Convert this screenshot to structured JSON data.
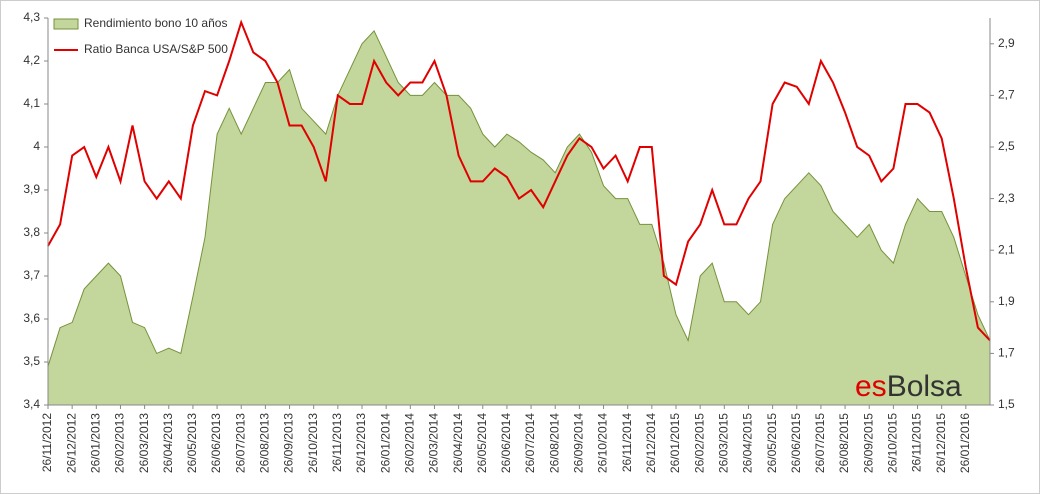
{
  "chart_data": {
    "type": "line",
    "categories": [
      "26/11/2012",
      null,
      "26/12/2012",
      null,
      "26/01/2013",
      null,
      "26/02/2013",
      null,
      "26/03/2013",
      null,
      "26/04/2013",
      null,
      "26/05/2013",
      null,
      "26/06/2013",
      null,
      "26/07/2013",
      null,
      "26/08/2013",
      null,
      "26/09/2013",
      null,
      "26/10/2013",
      null,
      "26/11/2013",
      null,
      "26/12/2013",
      null,
      "26/01/2014",
      null,
      "26/02/2014",
      null,
      "26/03/2014",
      null,
      "26/04/2014",
      null,
      "26/05/2014",
      null,
      "26/06/2014",
      null,
      "26/07/2014",
      null,
      "26/08/2014",
      null,
      "26/09/2014",
      null,
      "26/10/2014",
      null,
      "26/11/2014",
      null,
      "26/12/2014",
      null,
      "26/01/2015",
      null,
      "26/02/2015",
      null,
      "26/03/2015",
      null,
      "26/04/2015",
      null,
      "26/05/2015",
      null,
      "26/06/2015",
      null,
      "26/07/2015",
      null,
      "26/08/2015",
      null,
      "26/09/2015",
      null,
      "26/10/2015",
      null,
      "26/11/2015",
      null,
      "26/12/2015",
      null,
      "26/01/2016",
      null,
      null
    ],
    "series": [
      {
        "name": "Rendimiento bono 10 años",
        "color": "#c3d69b",
        "stroke": "#76923c",
        "axis": "y2",
        "kind": "area",
        "values": [
          1.65,
          1.8,
          1.82,
          1.95,
          2.0,
          2.05,
          2.0,
          1.82,
          1.8,
          1.7,
          1.72,
          1.7,
          1.92,
          2.15,
          2.55,
          2.65,
          2.55,
          2.65,
          2.75,
          2.75,
          2.8,
          2.65,
          2.6,
          2.55,
          2.7,
          2.8,
          2.9,
          2.95,
          2.85,
          2.75,
          2.7,
          2.7,
          2.75,
          2.7,
          2.7,
          2.65,
          2.55,
          2.5,
          2.55,
          2.52,
          2.48,
          2.45,
          2.4,
          2.5,
          2.55,
          2.48,
          2.35,
          2.3,
          2.3,
          2.2,
          2.2,
          2.05,
          1.85,
          1.75,
          2.0,
          2.05,
          1.9,
          1.9,
          1.85,
          1.9,
          2.2,
          2.3,
          2.35,
          2.4,
          2.35,
          2.25,
          2.2,
          2.15,
          2.2,
          2.1,
          2.05,
          2.2,
          2.3,
          2.25,
          2.25,
          2.15,
          2.0,
          1.85,
          1.75
        ]
      },
      {
        "name": "Ratio Banca USA/S&P 500",
        "color": "#e00000",
        "kind": "line",
        "values": [
          3.77,
          3.82,
          3.98,
          4.0,
          3.93,
          4.0,
          3.92,
          4.05,
          3.92,
          3.88,
          3.92,
          3.88,
          4.05,
          4.13,
          4.12,
          4.2,
          4.29,
          4.22,
          4.2,
          4.15,
          4.05,
          4.05,
          4.0,
          3.92,
          4.12,
          4.1,
          4.1,
          4.2,
          4.15,
          4.12,
          4.15,
          4.15,
          4.2,
          4.12,
          3.98,
          3.92,
          3.92,
          3.95,
          3.93,
          3.88,
          3.9,
          3.86,
          3.92,
          3.98,
          4.02,
          4.0,
          3.95,
          3.98,
          3.92,
          4.0,
          4.0,
          3.7,
          3.68,
          3.78,
          3.82,
          3.9,
          3.82,
          3.82,
          3.88,
          3.92,
          4.1,
          4.15,
          4.14,
          4.1,
          4.2,
          4.15,
          4.08,
          4.0,
          3.98,
          3.92,
          3.95,
          4.1,
          4.1,
          4.08,
          4.02,
          3.88,
          3.72,
          3.58,
          3.55
        ]
      }
    ],
    "ylim": [
      3.4,
      4.3
    ],
    "yticks": [
      {
        "value": 3.4,
        "label": "3,4"
      },
      {
        "value": 3.5,
        "label": "3,5"
      },
      {
        "value": 3.6,
        "label": "3,6"
      },
      {
        "value": 3.7,
        "label": "3,7"
      },
      {
        "value": 3.8,
        "label": "3,8"
      },
      {
        "value": 3.9,
        "label": "3,9"
      },
      4,
      {
        "value": 4.1,
        "label": "4,1"
      },
      {
        "value": 4.2,
        "label": "4,2"
      },
      {
        "value": 4.3,
        "label": "4,3"
      }
    ],
    "y2lim": [
      1.5,
      3.0
    ],
    "y2ticks": [
      {
        "value": 1.5,
        "label": "1,5"
      },
      {
        "value": 1.7,
        "label": "1,7"
      },
      {
        "value": 1.9,
        "label": "1,9"
      },
      {
        "value": 2.1,
        "label": "2,1"
      },
      {
        "value": 2.3,
        "label": "2,3"
      },
      {
        "value": 2.5,
        "label": "2,5"
      },
      {
        "value": 2.7,
        "label": "2,7"
      },
      {
        "value": 2.9,
        "label": "2,9"
      }
    ],
    "grid": false,
    "legend": "upper left",
    "watermark": [
      {
        "text": "es",
        "color": "#e00000"
      },
      {
        "text": "Bolsa",
        "color": "#333333"
      }
    ]
  }
}
